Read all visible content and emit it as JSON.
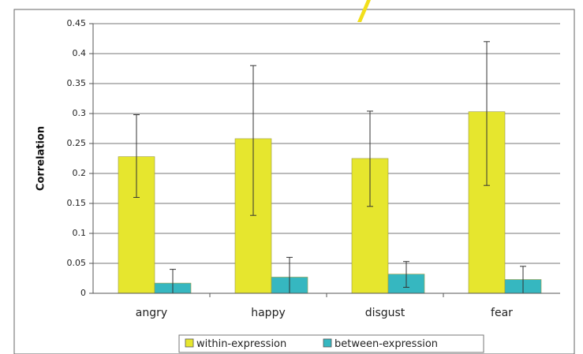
{
  "chart_data": {
    "type": "bar",
    "title": "",
    "xlabel": "",
    "ylabel": "Correlation",
    "categories": [
      "angry",
      "happy",
      "disgust",
      "fear"
    ],
    "ylim": [
      0,
      0.45
    ],
    "yticks": [
      0,
      0.05,
      0.1,
      0.15,
      0.2,
      0.25,
      0.3,
      0.35,
      0.4,
      0.45
    ],
    "ytick_labels": [
      "0",
      "0.05",
      "0.1",
      "0.15",
      "0.2",
      "0.25",
      "0.3",
      "0.35",
      "0.4",
      "0.45"
    ],
    "grid": true,
    "legend_position": "bottom",
    "series": [
      {
        "name": "within-expression",
        "color": "#e6e62e",
        "values": [
          0.228,
          0.258,
          0.225,
          0.303
        ],
        "error_low": [
          0.16,
          0.13,
          0.145,
          0.18
        ],
        "error_high": [
          0.298,
          0.38,
          0.304,
          0.42
        ]
      },
      {
        "name": "between-expression",
        "color": "#36b7c0",
        "values": [
          0.017,
          0.027,
          0.032,
          0.023
        ],
        "error_low": [
          0.0,
          0.0,
          0.01,
          0.0
        ],
        "error_high": [
          0.04,
          0.06,
          0.053,
          0.045
        ]
      }
    ]
  }
}
